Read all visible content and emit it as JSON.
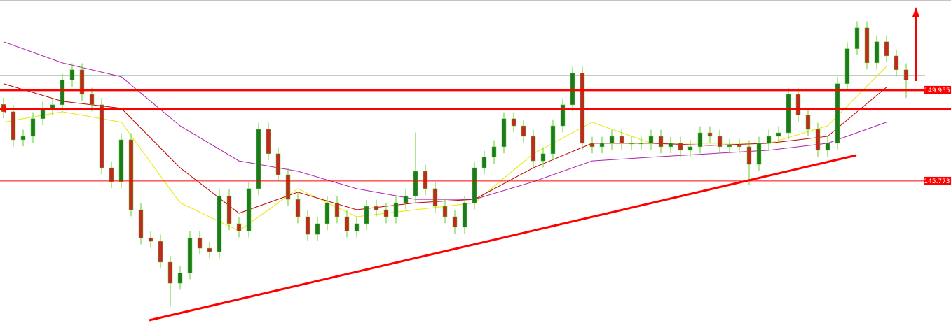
{
  "chart_data": {
    "type": "candlestick",
    "ylim": [
      138.92,
      154.1
    ],
    "up_color": "#1e7a1e",
    "down_color": "#c0291f",
    "wick_color": "#5fd12a",
    "open": [
      149.3,
      148.96,
      147.67,
      147.83,
      148.64,
      149.12,
      149.28,
      150.41,
      150.89,
      149.76,
      149.28,
      146.38,
      145.74,
      147.67,
      144.45,
      143.16,
      143.0,
      142.04,
      141.07,
      141.55,
      143.16,
      142.68,
      142.52,
      145.09,
      143.81,
      143.48,
      145.42,
      148.15,
      147.03,
      146.06,
      144.93,
      144.13,
      143.32,
      143.81,
      144.77,
      144.13,
      143.48,
      143.81,
      144.61,
      144.45,
      144.13,
      144.77,
      145.09,
      146.22,
      145.42,
      144.61,
      144.13,
      143.65,
      144.77,
      146.38,
      146.87,
      147.35,
      148.64,
      148.31,
      147.83,
      146.7,
      147.03,
      148.31,
      149.28,
      150.73,
      147.51,
      147.35,
      147.51,
      147.83,
      147.51,
      147.51,
      147.51,
      147.83,
      147.35,
      147.51,
      147.19,
      147.35,
      147.99,
      147.83,
      147.35,
      147.41,
      147.35,
      146.54,
      147.51,
      147.83,
      147.99,
      149.76,
      148.8,
      148.15,
      147.19,
      147.51,
      150.25,
      151.86,
      152.82,
      151.21,
      152.18,
      151.53,
      150.89
    ],
    "high": [
      149.6,
      149.26,
      148.13,
      148.94,
      149.42,
      149.58,
      150.71,
      151.19,
      151.19,
      150.06,
      149.58,
      146.68,
      147.97,
      147.97,
      144.75,
      143.46,
      143.3,
      142.34,
      141.85,
      143.46,
      143.46,
      142.98,
      145.39,
      145.39,
      144.11,
      145.72,
      148.45,
      148.45,
      147.33,
      146.36,
      145.23,
      144.43,
      144.11,
      145.07,
      145.07,
      144.43,
      144.11,
      144.91,
      144.91,
      144.75,
      145.07,
      145.39,
      148.0,
      146.52,
      145.72,
      144.91,
      144.43,
      145.07,
      146.68,
      147.17,
      147.65,
      148.94,
      148.94,
      148.61,
      148.13,
      147.33,
      148.61,
      149.58,
      151.03,
      151.03,
      147.81,
      147.81,
      148.13,
      148.13,
      147.81,
      147.81,
      148.13,
      148.13,
      147.81,
      147.81,
      147.65,
      148.29,
      148.29,
      148.13,
      147.71,
      147.71,
      147.65,
      147.81,
      148.13,
      148.29,
      150.06,
      150.06,
      149.1,
      148.45,
      147.81,
      150.55,
      152.16,
      153.12,
      153.12,
      152.48,
      152.48,
      151.83,
      151.19
    ],
    "low": [
      148.66,
      147.37,
      147.37,
      147.53,
      148.34,
      148.82,
      148.98,
      150.11,
      149.46,
      148.98,
      146.08,
      145.44,
      145.44,
      144.15,
      142.86,
      142.7,
      141.74,
      140.0,
      140.77,
      141.25,
      142.38,
      142.22,
      142.22,
      143.51,
      143.18,
      143.18,
      145.12,
      146.73,
      145.76,
      144.63,
      143.83,
      143.02,
      143.02,
      143.51,
      143.83,
      143.18,
      143.18,
      143.51,
      144.15,
      143.83,
      143.83,
      144.47,
      144.79,
      145.12,
      144.31,
      143.83,
      143.35,
      143.35,
      144.47,
      146.08,
      146.57,
      147.05,
      148.01,
      147.53,
      146.4,
      146.4,
      146.73,
      148.01,
      148.98,
      147.21,
      147.05,
      147.05,
      147.21,
      147.21,
      147.21,
      147.21,
      147.21,
      147.05,
      147.05,
      146.89,
      146.89,
      147.05,
      147.53,
      147.05,
      147.05,
      147.05,
      145.6,
      146.24,
      147.21,
      147.53,
      147.69,
      148.5,
      147.85,
      146.89,
      146.89,
      147.21,
      149.95,
      151.56,
      150.91,
      150.91,
      151.23,
      150.59,
      149.6
    ],
    "close": [
      148.96,
      147.67,
      147.83,
      148.64,
      149.12,
      149.28,
      150.41,
      150.89,
      149.76,
      149.28,
      146.38,
      145.74,
      147.67,
      144.45,
      143.16,
      143.0,
      142.04,
      141.07,
      141.55,
      143.16,
      142.68,
      142.52,
      145.09,
      143.81,
      143.48,
      145.42,
      148.15,
      147.03,
      146.06,
      144.93,
      144.13,
      143.32,
      143.81,
      144.77,
      144.13,
      143.48,
      143.81,
      144.61,
      144.45,
      144.13,
      144.77,
      145.09,
      146.22,
      145.42,
      144.61,
      144.13,
      143.65,
      144.77,
      146.38,
      146.87,
      147.35,
      148.64,
      148.31,
      147.83,
      146.7,
      147.03,
      148.31,
      149.28,
      150.73,
      147.51,
      147.35,
      147.51,
      147.83,
      147.51,
      147.51,
      147.51,
      147.83,
      147.35,
      147.51,
      147.19,
      147.35,
      147.99,
      147.83,
      147.35,
      147.41,
      147.35,
      146.54,
      147.51,
      147.83,
      147.99,
      149.76,
      148.8,
      148.15,
      147.19,
      147.51,
      150.25,
      151.86,
      152.82,
      151.21,
      152.18,
      151.53,
      150.89,
      150.41
    ],
    "series": [
      {
        "color": "#e8e800",
        "x": [
          0,
          6,
          12,
          18,
          24,
          30,
          36,
          42,
          48,
          54,
          60,
          66,
          72,
          78,
          84,
          90
        ],
        "values": [
          148.48,
          148.96,
          148.48,
          144.77,
          143.48,
          145.42,
          144.13,
          144.45,
          144.77,
          147.03,
          148.48,
          147.51,
          147.51,
          147.51,
          148.31,
          151.05
        ]
      },
      {
        "color": "#c00000",
        "x": [
          0,
          6,
          12,
          18,
          24,
          30,
          36,
          42,
          48,
          54,
          60,
          66,
          72,
          78,
          84,
          90
        ],
        "values": [
          150.25,
          149.44,
          149.12,
          146.38,
          144.29,
          145.26,
          144.45,
          144.77,
          144.93,
          146.38,
          147.51,
          147.51,
          147.41,
          147.51,
          147.83,
          150.09
        ]
      },
      {
        "color": "#b01fb0",
        "x": [
          0,
          6,
          12,
          18,
          24,
          30,
          36,
          42,
          48,
          54,
          60,
          66,
          72,
          78,
          84,
          90
        ],
        "values": [
          152.18,
          151.21,
          150.57,
          148.31,
          146.7,
          146.22,
          145.42,
          144.93,
          144.93,
          145.74,
          146.7,
          146.87,
          147.03,
          147.19,
          147.51,
          148.48
        ]
      }
    ],
    "price_levels": [
      149.955,
      145.773
    ],
    "level_color": "#ff0000"
  }
}
